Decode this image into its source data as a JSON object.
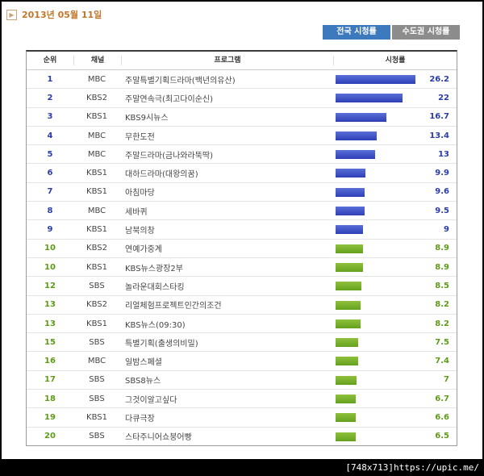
{
  "date": "2013년 05월 11일",
  "tabs": [
    {
      "label": "전국 시청률",
      "active": true
    },
    {
      "label": "수도권 시청률",
      "active": false
    }
  ],
  "headers": {
    "rank": "순위",
    "channel": "채널",
    "program": "프로그램",
    "rating": "시청률"
  },
  "colors": {
    "top9_bar": "#3a4cc8",
    "rest_bar": "#78b02c"
  },
  "rows": [
    {
      "rank": "1",
      "channel": "MBC",
      "program": "주말특별기획드라마(백년의유산)",
      "rating": "26.2"
    },
    {
      "rank": "2",
      "channel": "KBS2",
      "program": "주말연속극(최고다이순신)",
      "rating": "22"
    },
    {
      "rank": "3",
      "channel": "KBS1",
      "program": "KBS9시뉴스",
      "rating": "16.7"
    },
    {
      "rank": "4",
      "channel": "MBC",
      "program": "무한도전",
      "rating": "13.4"
    },
    {
      "rank": "5",
      "channel": "MBC",
      "program": "주말드라마(금나와라뚝딱)",
      "rating": "13"
    },
    {
      "rank": "6",
      "channel": "KBS1",
      "program": "대하드라마(대왕의꿈)",
      "rating": "9.9"
    },
    {
      "rank": "7",
      "channel": "KBS1",
      "program": "아침마당",
      "rating": "9.6"
    },
    {
      "rank": "8",
      "channel": "MBC",
      "program": "세바퀴",
      "rating": "9.5"
    },
    {
      "rank": "9",
      "channel": "KBS1",
      "program": "남북의창",
      "rating": "9"
    },
    {
      "rank": "10",
      "channel": "KBS2",
      "program": "연예가중계",
      "rating": "8.9"
    },
    {
      "rank": "10",
      "channel": "KBS1",
      "program": "KBS뉴스광장2부",
      "rating": "8.9"
    },
    {
      "rank": "12",
      "channel": "SBS",
      "program": "놀라운대회스타킹",
      "rating": "8.5"
    },
    {
      "rank": "13",
      "channel": "KBS2",
      "program": "리얼체험프로젝트인간의조건",
      "rating": "8.2"
    },
    {
      "rank": "13",
      "channel": "KBS1",
      "program": "KBS뉴스(09:30)",
      "rating": "8.2"
    },
    {
      "rank": "15",
      "channel": "SBS",
      "program": "특별기획(출생의비밀)",
      "rating": "7.5"
    },
    {
      "rank": "16",
      "channel": "MBC",
      "program": "일밤스페셜",
      "rating": "7.4"
    },
    {
      "rank": "17",
      "channel": "SBS",
      "program": "SBS8뉴스",
      "rating": "7"
    },
    {
      "rank": "18",
      "channel": "SBS",
      "program": "그것이알고싶다",
      "rating": "6.7"
    },
    {
      "rank": "19",
      "channel": "KBS1",
      "program": "다큐극장",
      "rating": "6.6"
    },
    {
      "rank": "20",
      "channel": "SBS",
      "program": "스타주니어쇼붕어빵",
      "rating": "6.5"
    }
  ],
  "caption": "[748x713]https://upic.me/"
}
